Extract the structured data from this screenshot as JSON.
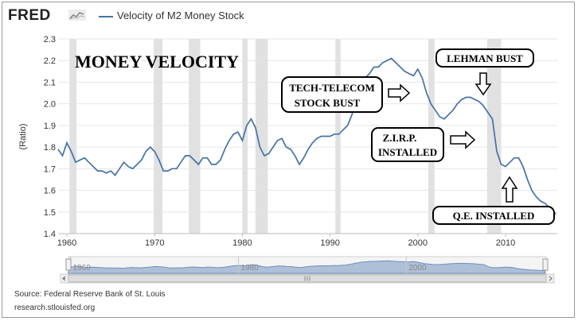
{
  "header": {
    "logo_text": "FRED",
    "legend_label": "Velocity of M2 Money Stock",
    "series_color": "#4572a7"
  },
  "footer": {
    "source": "Source: Federal Reserve Bank of St. Louis",
    "site": "research.stlouisfed.org"
  },
  "annotations": {
    "title": "MONEY VELOCITY",
    "tech_line1": "TECH-TELECOM",
    "tech_line2": "STOCK BUST",
    "lehman": "LEHMAN BUST",
    "zirp_line1": "Z.I.R.P.",
    "zirp_line2": "INSTALLED",
    "qe": "Q.E. INSTALLED"
  },
  "chart_data": {
    "type": "line",
    "ylabel": "(Ratio)",
    "ylim": [
      1.4,
      2.3
    ],
    "xlim": [
      1959,
      2015.9
    ],
    "yticks": [
      1.4,
      1.5,
      1.6,
      1.7,
      1.8,
      1.9,
      2.0,
      2.1,
      2.2,
      2.3
    ],
    "xticks": [
      1960,
      1970,
      1980,
      1990,
      2000,
      2010
    ],
    "recessions": [
      [
        1960.3,
        1961.1
      ],
      [
        1969.9,
        1970.9
      ],
      [
        1973.9,
        1975.2
      ],
      [
        1980.0,
        1980.6
      ],
      [
        1981.5,
        1982.9
      ],
      [
        1990.6,
        1991.2
      ],
      [
        2001.2,
        2001.9
      ],
      [
        2007.9,
        2009.5
      ]
    ],
    "navigator_ticks": [
      "1960",
      "1980",
      "2000"
    ],
    "series": [
      {
        "name": "Velocity of M2 Money Stock",
        "x": [
          1959.0,
          1959.5,
          1960.0,
          1960.5,
          1961.0,
          1961.5,
          1962.0,
          1962.5,
          1963.0,
          1963.5,
          1964.0,
          1964.5,
          1965.0,
          1965.5,
          1966.0,
          1966.5,
          1967.0,
          1967.5,
          1968.0,
          1968.5,
          1969.0,
          1969.5,
          1970.0,
          1970.5,
          1971.0,
          1971.5,
          1972.0,
          1972.5,
          1973.0,
          1973.5,
          1974.0,
          1974.5,
          1975.0,
          1975.5,
          1976.0,
          1976.5,
          1977.0,
          1977.5,
          1978.0,
          1978.5,
          1979.0,
          1979.5,
          1980.0,
          1980.5,
          1981.0,
          1981.5,
          1982.0,
          1982.5,
          1983.0,
          1983.5,
          1984.0,
          1984.5,
          1985.0,
          1985.5,
          1986.0,
          1986.5,
          1987.0,
          1987.5,
          1988.0,
          1988.5,
          1989.0,
          1989.5,
          1990.0,
          1990.5,
          1991.0,
          1991.5,
          1992.0,
          1992.5,
          1993.0,
          1993.5,
          1994.0,
          1994.5,
          1995.0,
          1995.5,
          1996.0,
          1996.5,
          1997.0,
          1997.5,
          1998.0,
          1998.5,
          1999.0,
          1999.5,
          2000.0,
          2000.5,
          2001.0,
          2001.5,
          2002.0,
          2002.5,
          2003.0,
          2003.5,
          2004.0,
          2004.5,
          2005.0,
          2005.5,
          2006.0,
          2006.5,
          2007.0,
          2007.5,
          2008.0,
          2008.5,
          2009.0,
          2009.5,
          2010.0,
          2010.5,
          2011.0,
          2011.5,
          2012.0,
          2012.5,
          2013.0,
          2013.5,
          2014.0,
          2014.5,
          2015.0,
          2015.5,
          2015.75
        ],
        "values": [
          1.79,
          1.76,
          1.82,
          1.78,
          1.73,
          1.74,
          1.75,
          1.73,
          1.71,
          1.69,
          1.69,
          1.68,
          1.69,
          1.67,
          1.7,
          1.73,
          1.71,
          1.7,
          1.72,
          1.74,
          1.78,
          1.8,
          1.78,
          1.74,
          1.69,
          1.69,
          1.7,
          1.7,
          1.73,
          1.76,
          1.76,
          1.74,
          1.72,
          1.75,
          1.75,
          1.72,
          1.72,
          1.74,
          1.79,
          1.83,
          1.86,
          1.87,
          1.83,
          1.9,
          1.93,
          1.89,
          1.8,
          1.76,
          1.77,
          1.8,
          1.83,
          1.84,
          1.8,
          1.79,
          1.76,
          1.72,
          1.75,
          1.79,
          1.82,
          1.84,
          1.85,
          1.85,
          1.85,
          1.86,
          1.86,
          1.88,
          1.9,
          1.95,
          2.02,
          2.07,
          2.12,
          2.14,
          2.17,
          2.17,
          2.19,
          2.2,
          2.21,
          2.19,
          2.17,
          2.15,
          2.14,
          2.13,
          2.16,
          2.12,
          2.05,
          2.0,
          1.97,
          1.94,
          1.93,
          1.95,
          1.97,
          2.0,
          2.02,
          2.03,
          2.03,
          2.02,
          2.01,
          1.99,
          1.96,
          1.93,
          1.78,
          1.72,
          1.71,
          1.73,
          1.75,
          1.75,
          1.71,
          1.65,
          1.6,
          1.57,
          1.55,
          1.54,
          1.52,
          1.5,
          1.49
        ]
      }
    ]
  }
}
